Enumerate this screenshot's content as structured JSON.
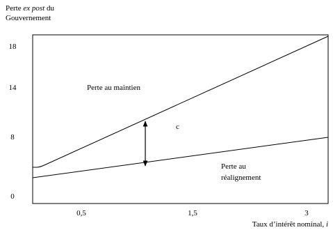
{
  "y_axis": {
    "label_start": "Perte",
    "label_italic": "ex post",
    "label_end": "du",
    "label_line2": "Gouvernement",
    "ticks": [
      "18",
      "14",
      "8",
      "0"
    ]
  },
  "x_axis": {
    "ticks": [
      "0,5",
      "1,5",
      "3"
    ],
    "label": "Taux d’intérêt nominal,",
    "label_italic": "i"
  },
  "annotations": {
    "upper_curve": "Perte au maintien",
    "gap": "c",
    "lower_line_1": "Perte au",
    "lower_line_2": "réalignement"
  }
}
